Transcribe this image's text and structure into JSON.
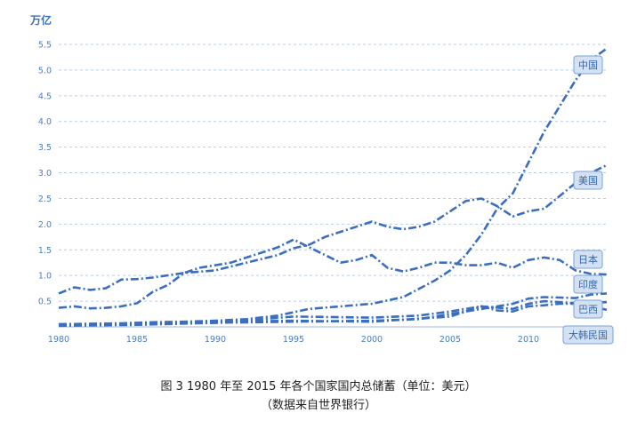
{
  "chart_data": {
    "type": "line",
    "unit": "万亿",
    "ylim": [
      0,
      5.5
    ],
    "xlim": [
      1980,
      2015
    ],
    "yticks": [
      "0.5",
      "1.0",
      "1.5",
      "2.0",
      "2.5",
      "3.0",
      "3.5",
      "4.0",
      "4.5",
      "5.0",
      "5.5"
    ],
    "xticks": [
      "1980",
      "1985",
      "1990",
      "1995",
      "2000",
      "2005",
      "2010"
    ],
    "grid": "horizontal dashed",
    "line_color": "#3a6fc0",
    "caption_line1": "图 3 1980 年至 2015 年各个国家国内总储蓄（单位：美元）",
    "caption_line2": "（数据来自世界银行）",
    "series": [
      {
        "name": "中国",
        "x": [
          1980,
          1982,
          1984,
          1986,
          1988,
          1990,
          1992,
          1994,
          1996,
          1998,
          2000,
          2002,
          2004,
          2005,
          2006,
          2007,
          2008,
          2009,
          2010,
          2011,
          2012,
          2013,
          2014,
          2015
        ],
        "values": [
          0.05,
          0.06,
          0.07,
          0.09,
          0.1,
          0.12,
          0.15,
          0.22,
          0.35,
          0.4,
          0.45,
          0.58,
          0.9,
          1.1,
          1.4,
          1.8,
          2.3,
          2.6,
          3.2,
          3.8,
          4.3,
          4.8,
          5.2,
          5.42
        ]
      },
      {
        "name": "美国",
        "x": [
          1980,
          1981,
          1982,
          1983,
          1984,
          1985,
          1986,
          1988,
          1990,
          1992,
          1994,
          1995,
          1996,
          1997,
          1998,
          1999,
          2000,
          2001,
          2002,
          2003,
          2004,
          2005,
          2006,
          2007,
          2008,
          2009,
          2010,
          2011,
          2012,
          2013,
          2014,
          2015
        ],
        "values": [
          0.65,
          0.77,
          0.72,
          0.75,
          0.92,
          0.93,
          0.96,
          1.05,
          1.1,
          1.25,
          1.4,
          1.53,
          1.6,
          1.75,
          1.85,
          1.95,
          2.05,
          1.95,
          1.9,
          1.95,
          2.05,
          2.25,
          2.45,
          2.5,
          2.35,
          2.15,
          2.25,
          2.3,
          2.55,
          2.8,
          3.0,
          3.15
        ]
      },
      {
        "name": "日本",
        "x": [
          1980,
          1981,
          1982,
          1983,
          1984,
          1985,
          1986,
          1987,
          1988,
          1989,
          1990,
          1991,
          1992,
          1993,
          1994,
          1995,
          1996,
          1997,
          1998,
          1999,
          2000,
          2001,
          2002,
          2003,
          2004,
          2005,
          2006,
          2007,
          2008,
          2009,
          2010,
          2011,
          2012,
          2013,
          2014,
          2015
        ],
        "values": [
          0.37,
          0.4,
          0.36,
          0.37,
          0.4,
          0.46,
          0.68,
          0.82,
          1.05,
          1.15,
          1.2,
          1.25,
          1.35,
          1.45,
          1.55,
          1.7,
          1.55,
          1.4,
          1.25,
          1.3,
          1.4,
          1.15,
          1.08,
          1.15,
          1.25,
          1.25,
          1.2,
          1.2,
          1.25,
          1.15,
          1.3,
          1.35,
          1.3,
          1.1,
          1.03,
          1.02
        ]
      },
      {
        "name": "印度",
        "x": [
          1980,
          1985,
          1990,
          1995,
          2000,
          2003,
          2005,
          2007,
          2008,
          2009,
          2010,
          2011,
          2012,
          2013,
          2014,
          2015
        ],
        "values": [
          0.03,
          0.05,
          0.08,
          0.1,
          0.12,
          0.15,
          0.25,
          0.35,
          0.4,
          0.45,
          0.55,
          0.58,
          0.57,
          0.56,
          0.63,
          0.65
        ]
      },
      {
        "name": "巴西",
        "x": [
          1980,
          1985,
          1990,
          1995,
          2000,
          2005,
          2007,
          2009,
          2010,
          2011,
          2012,
          2013,
          2014,
          2015
        ],
        "values": [
          0.05,
          0.07,
          0.1,
          0.12,
          0.1,
          0.2,
          0.4,
          0.35,
          0.45,
          0.5,
          0.48,
          0.46,
          0.4,
          0.33
        ]
      },
      {
        "name": "大韩民国",
        "x": [
          1980,
          1985,
          1990,
          1995,
          2000,
          2003,
          2005,
          2007,
          2008,
          2009,
          2010,
          2011,
          2012,
          2013,
          2014,
          2015
        ],
        "values": [
          0.02,
          0.04,
          0.08,
          0.2,
          0.18,
          0.22,
          0.3,
          0.4,
          0.32,
          0.3,
          0.4,
          0.42,
          0.45,
          0.45,
          0.47,
          0.48
        ]
      }
    ]
  }
}
